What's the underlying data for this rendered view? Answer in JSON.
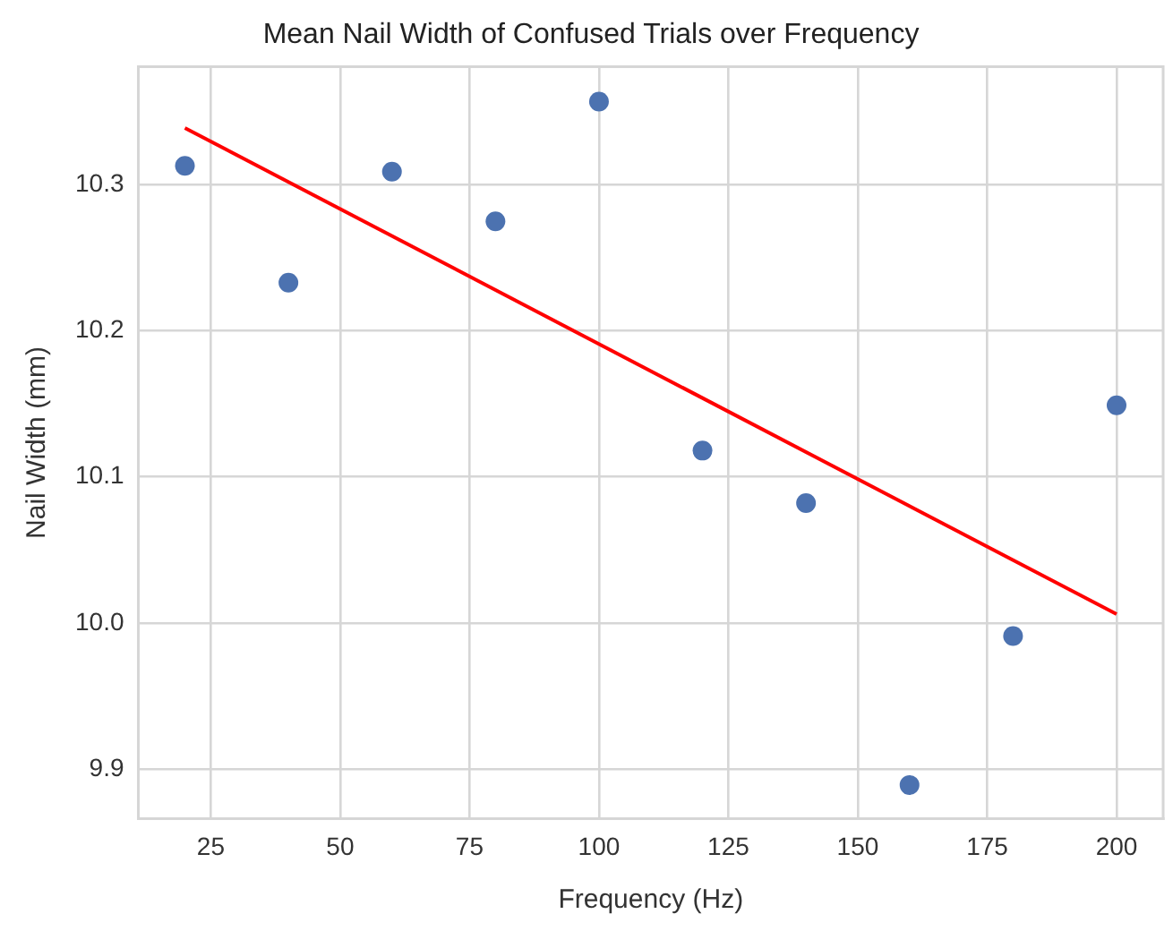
{
  "chart_data": {
    "type": "scatter",
    "title": "Mean Nail Width of Confused Trials over Frequency",
    "xlabel": "Frequency (Hz)",
    "ylabel": "Nail Width (mm)",
    "series": [
      {
        "color": "#4c72b0",
        "marker": "circle",
        "x": [
          20,
          40,
          60,
          80,
          100,
          120,
          140,
          160,
          180,
          200
        ],
        "values": [
          10.313,
          10.233,
          10.309,
          10.275,
          10.357,
          10.118,
          10.082,
          9.889,
          9.991,
          10.149
        ]
      },
      {
        "type": "line",
        "color": "#ff0000",
        "marker": "none",
        "line_style": "solid",
        "x": [
          20,
          200
        ],
        "values": [
          10.339,
          10.006
        ]
      }
    ],
    "xlim": [
      11,
      209
    ],
    "xticks": [
      25,
      50,
      75,
      100,
      125,
      150,
      175,
      200
    ],
    "ylim": [
      9.866,
      10.381
    ],
    "yticks": [
      {
        "value": 9.9,
        "label": "9.9"
      },
      {
        "value": 10.0,
        "label": "10.0"
      },
      {
        "value": 10.1,
        "label": "10.1"
      },
      {
        "value": 10.2,
        "label": "10.2"
      },
      {
        "value": 10.3,
        "label": "10.3"
      }
    ],
    "grid": true
  }
}
